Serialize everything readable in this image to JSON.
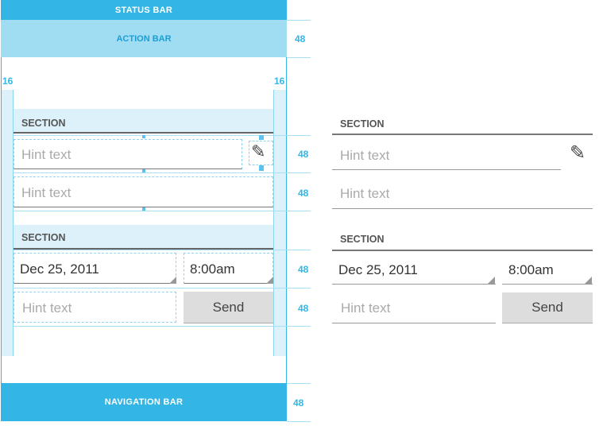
{
  "phone": {
    "status_bar": "STATUS BAR",
    "action_bar": "ACTION BAR",
    "navigation_bar": "NAVIGATION BAR",
    "margin_left": "16",
    "margin_right": "16"
  },
  "measurements": {
    "action_bar": "48",
    "row1": "48",
    "row2": "48",
    "row3": "48",
    "row4": "48",
    "navigation_bar": "48"
  },
  "form": {
    "section1": "SECTION",
    "hint1": "Hint text",
    "hint2": "Hint text",
    "section2": "SECTION",
    "date": "Dec 25, 2011",
    "time": "8:00am",
    "hint3": "Hint text",
    "send": "Send"
  },
  "icons": {
    "edit": "pencil-icon"
  },
  "colors": {
    "accent": "#33b5e5",
    "highlight": "#ddf1fa"
  }
}
